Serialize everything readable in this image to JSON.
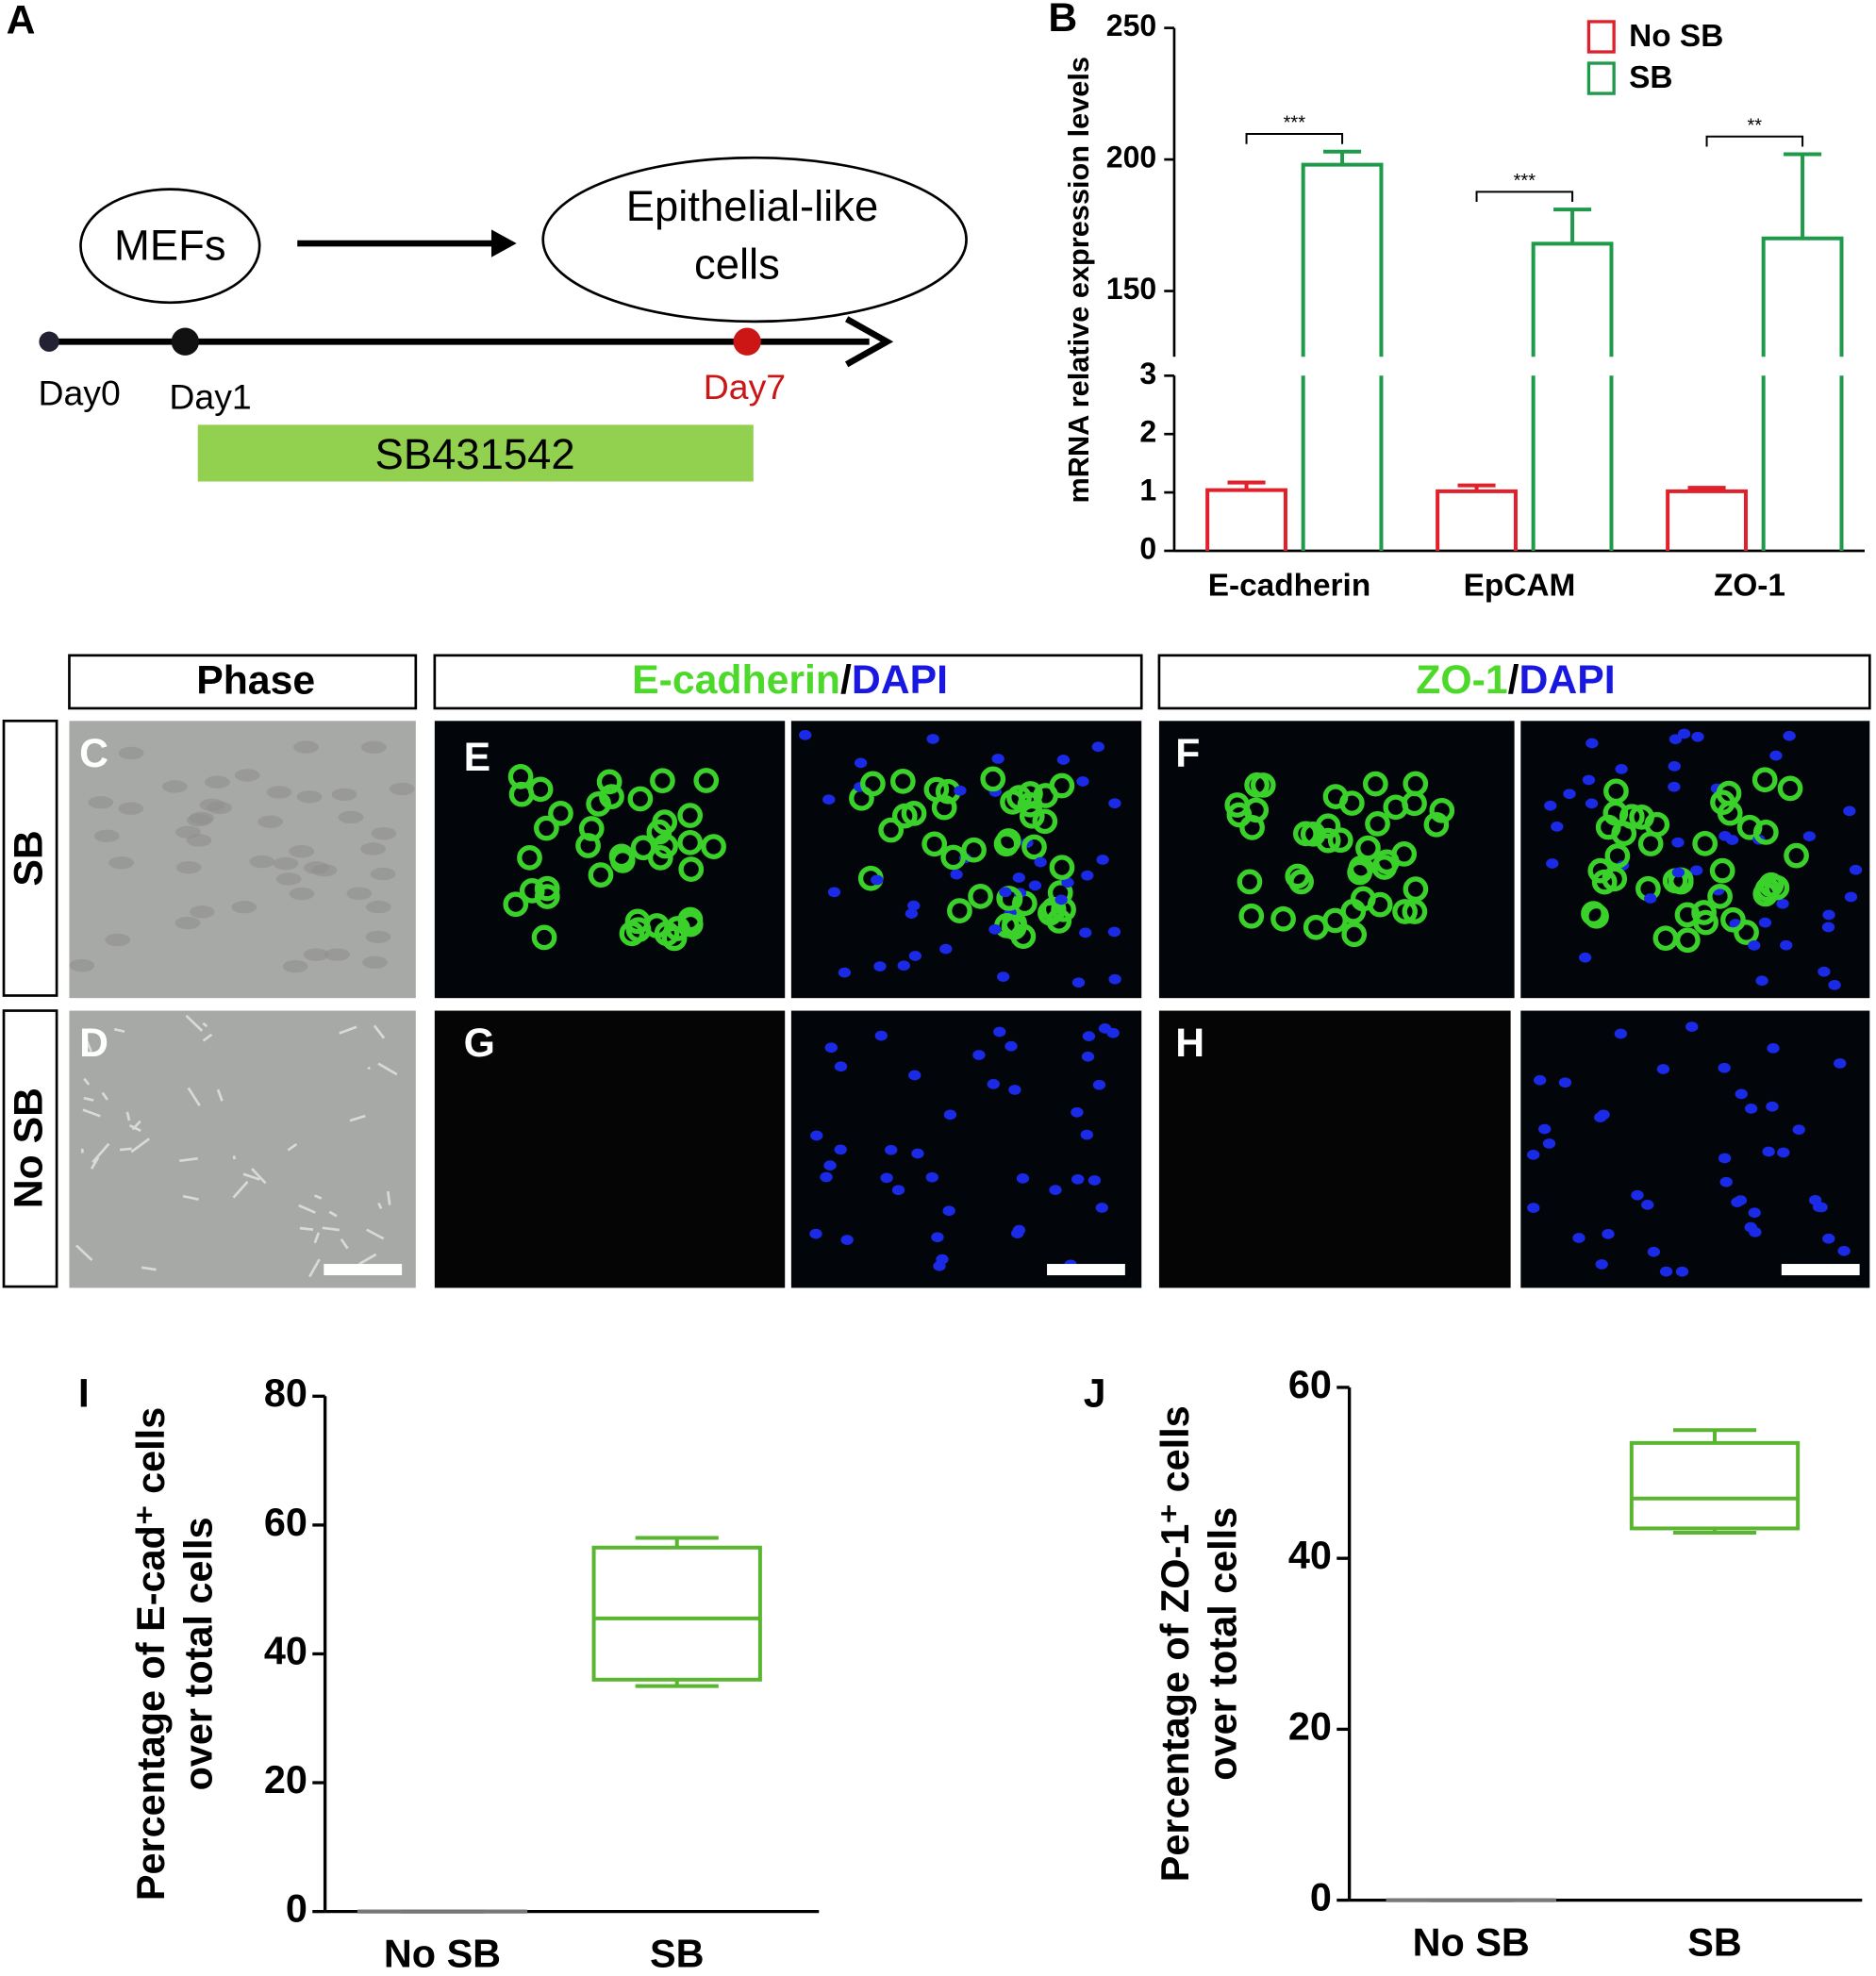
{
  "panel_letters": [
    "A",
    "B",
    "C",
    "D",
    "E",
    "F",
    "G",
    "H",
    "I",
    "J"
  ],
  "diagram": {
    "start": "MEFs",
    "end": [
      "Epithelial-like",
      "cells"
    ],
    "days": [
      "Day0",
      "Day1",
      "Day7"
    ],
    "treatment": "SB431542"
  },
  "micrographs": {
    "phase_header": "Phase",
    "ecad_header": [
      "E-cadherin",
      "/",
      "DAPI"
    ],
    "zo1_header": [
      "ZO-1",
      "/",
      "DAPI"
    ],
    "rows": [
      "SB",
      "No SB"
    ]
  },
  "chart_data": [
    {
      "type": "bar",
      "y_label": "mRNA relative expression levels",
      "categories": [
        "E-cadherin",
        "EpCAM",
        "ZO-1"
      ],
      "y_segments": [
        {
          "ylim": [
            0,
            3
          ],
          "yticks": [
            0,
            1,
            2,
            3
          ]
        },
        {
          "ylim": [
            125,
            250
          ],
          "yticks": [
            150,
            200,
            250
          ]
        }
      ],
      "series": [
        {
          "name": "No SB",
          "color": "#e0202a",
          "values": [
            1.04,
            1.02,
            1.02
          ],
          "errors": [
            0.13,
            0.1,
            0.06
          ]
        },
        {
          "name": "SB",
          "color": "#1e9a4a",
          "values": [
            198,
            168,
            170
          ],
          "errors": [
            5,
            13,
            32
          ]
        }
      ],
      "significance": [
        "***",
        "***",
        "**"
      ],
      "legend": "upper right"
    },
    {
      "type": "box",
      "y_label": [
        "Percentage of E-cad⁺ cells",
        "over total cells"
      ],
      "categories": [
        "No SB",
        "SB"
      ],
      "boxes": [
        {
          "color": "#777777",
          "min": 0,
          "q1": 0,
          "median": 0,
          "q3": 0,
          "max": 0
        },
        {
          "color": "#5ab531",
          "min": 35,
          "q1": 36,
          "median": 45.5,
          "q3": 56.5,
          "max": 58
        }
      ],
      "ylim": [
        0,
        80
      ],
      "yticks": [
        0,
        20,
        40,
        60,
        80
      ]
    },
    {
      "type": "box",
      "y_label": [
        "Percentage of ZO-1⁺ cells",
        "over total cells"
      ],
      "categories": [
        "No SB",
        "SB"
      ],
      "boxes": [
        {
          "color": "#777777",
          "min": 0,
          "q1": 0,
          "median": 0,
          "q3": 0,
          "max": 0
        },
        {
          "color": "#5ab531",
          "min": 43,
          "q1": 43.5,
          "median": 47,
          "q3": 53.5,
          "max": 55
        }
      ],
      "ylim": [
        0,
        60
      ],
      "yticks": [
        0,
        20,
        40,
        60
      ]
    }
  ]
}
